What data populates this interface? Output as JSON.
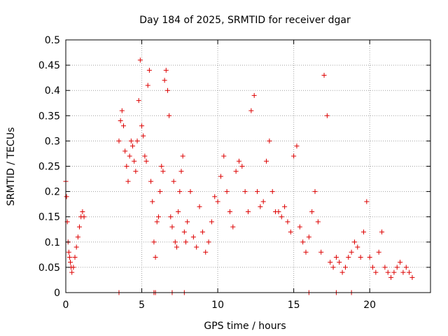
{
  "chart_data": {
    "type": "scatter",
    "title": "Day 184 of 2025, SRMTID for receiver dgar",
    "xlabel": "GPS time / hours",
    "ylabel": "SRMTID / TECUs",
    "xlim": [
      0,
      24
    ],
    "ylim": [
      0,
      0.5
    ],
    "x_ticks": [
      0,
      5,
      10,
      15,
      20
    ],
    "x_tick_labels": [
      "0",
      "5",
      "10",
      "15",
      "20"
    ],
    "y_ticks": [
      0,
      0.05,
      0.1,
      0.15,
      0.2,
      0.25,
      0.3,
      0.35,
      0.4,
      0.45,
      0.5
    ],
    "y_tick_labels": [
      "0",
      "0.05",
      "0.1",
      "0.15",
      "0.2",
      "0.25",
      "0.3",
      "0.35",
      "0.4",
      "0.45",
      "0.5"
    ],
    "grid": true,
    "marker": "+",
    "color": "#dd0000",
    "series": [
      {
        "name": "SRMTID",
        "x": [
          0.0,
          0.05,
          0.1,
          0.15,
          0.2,
          0.25,
          0.3,
          0.35,
          0.4,
          0.5,
          0.6,
          0.7,
          0.8,
          0.9,
          1.0,
          1.1,
          1.2,
          3.5,
          3.6,
          3.7,
          3.8,
          3.9,
          4.0,
          4.1,
          4.2,
          4.3,
          4.4,
          4.5,
          4.6,
          4.7,
          4.8,
          4.9,
          5.0,
          5.1,
          5.2,
          5.3,
          5.4,
          5.5,
          5.6,
          5.7,
          5.8,
          5.9,
          6.0,
          6.1,
          6.2,
          6.3,
          6.4,
          6.5,
          6.6,
          6.7,
          6.8,
          6.9,
          7.0,
          7.1,
          7.2,
          7.3,
          7.4,
          7.5,
          7.6,
          7.7,
          7.8,
          7.9,
          8.0,
          8.2,
          8.4,
          8.6,
          8.8,
          9.0,
          9.2,
          9.4,
          9.6,
          9.8,
          10.0,
          10.2,
          10.4,
          10.6,
          10.8,
          11.0,
          11.2,
          11.4,
          11.6,
          11.8,
          12.0,
          12.2,
          12.4,
          12.6,
          12.8,
          13.0,
          13.2,
          13.4,
          13.6,
          13.8,
          14.0,
          14.2,
          14.4,
          14.6,
          14.8,
          15.0,
          15.2,
          15.4,
          15.6,
          15.8,
          16.0,
          16.2,
          16.4,
          16.6,
          16.8,
          17.0,
          17.2,
          17.4,
          17.6,
          17.8,
          18.0,
          18.2,
          18.4,
          18.6,
          18.8,
          19.0,
          19.2,
          19.4,
          19.6,
          19.8,
          20.0,
          20.2,
          20.4,
          20.6,
          20.8,
          21.0,
          21.2,
          21.4,
          21.6,
          21.8,
          22.0,
          22.2,
          22.4,
          22.6,
          22.8
        ],
        "y": [
          0.22,
          0.19,
          0.14,
          0.1,
          0.08,
          0.07,
          0.06,
          0.05,
          0.04,
          0.05,
          0.07,
          0.09,
          0.11,
          0.13,
          0.15,
          0.16,
          0.15,
          0.3,
          0.34,
          0.36,
          0.33,
          0.28,
          0.25,
          0.22,
          0.27,
          0.3,
          0.29,
          0.26,
          0.24,
          0.3,
          0.38,
          0.46,
          0.33,
          0.31,
          0.27,
          0.26,
          0.41,
          0.44,
          0.22,
          0.18,
          0.1,
          0.07,
          0.14,
          0.15,
          0.2,
          0.25,
          0.24,
          0.42,
          0.44,
          0.4,
          0.35,
          0.15,
          0.13,
          0.22,
          0.1,
          0.09,
          0.16,
          0.2,
          0.24,
          0.27,
          0.12,
          0.1,
          0.14,
          0.2,
          0.11,
          0.09,
          0.17,
          0.12,
          0.08,
          0.1,
          0.14,
          0.19,
          0.18,
          0.23,
          0.27,
          0.2,
          0.16,
          0.13,
          0.24,
          0.26,
          0.25,
          0.2,
          0.16,
          0.36,
          0.39,
          0.2,
          0.17,
          0.18,
          0.26,
          0.3,
          0.2,
          0.16,
          0.16,
          0.15,
          0.17,
          0.14,
          0.12,
          0.27,
          0.29,
          0.13,
          0.1,
          0.08,
          0.11,
          0.16,
          0.2,
          0.14,
          0.08,
          0.43,
          0.35,
          0.06,
          0.05,
          0.07,
          0.06,
          0.04,
          0.05,
          0.07,
          0.08,
          0.1,
          0.09,
          0.07,
          0.12,
          0.18,
          0.07,
          0.05,
          0.04,
          0.08,
          0.12,
          0.05,
          0.04,
          0.03,
          0.04,
          0.05,
          0.06,
          0.04,
          0.05,
          0.04,
          0.03
        ]
      }
    ],
    "zero_markers_x": [
      3.5,
      5.8,
      5.9,
      7.0,
      7.8,
      16.0,
      17.8,
      18.8
    ]
  }
}
